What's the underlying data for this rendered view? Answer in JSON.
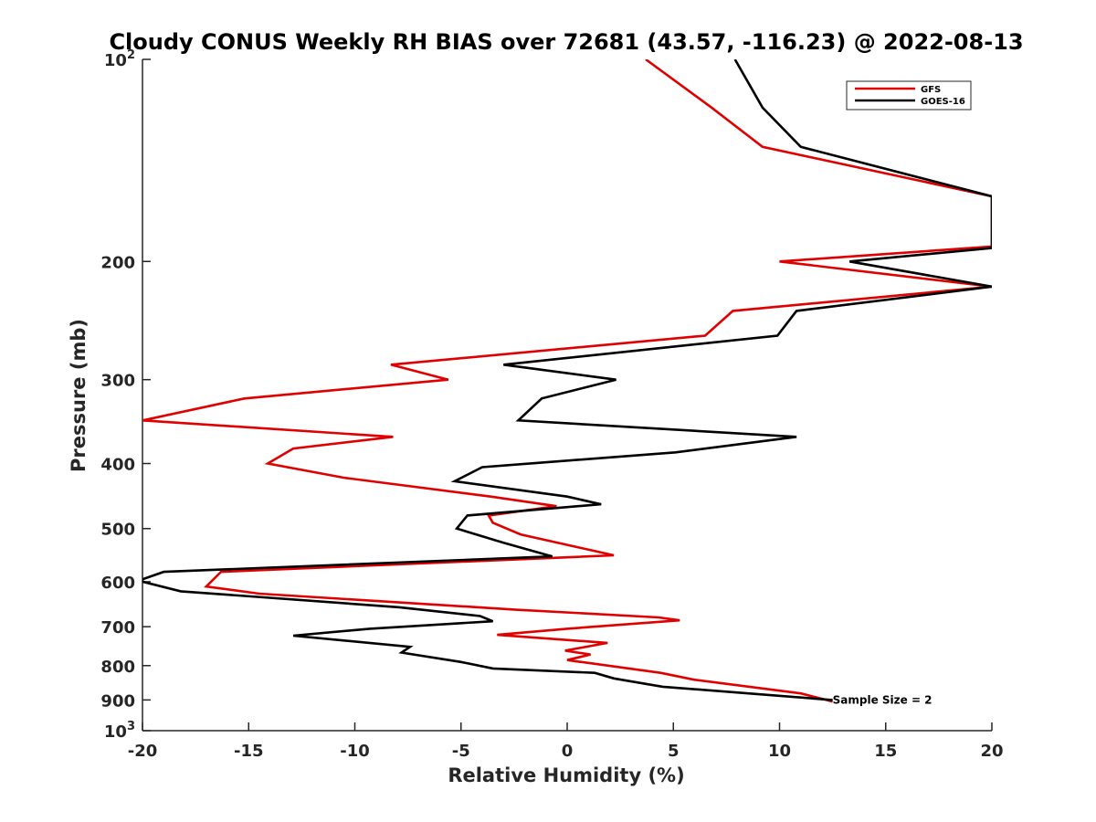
{
  "chart_data": {
    "type": "line",
    "title": "Cloudy CONUS Weekly RH BIAS over 72681 (43.57, -116.23) @ 2022-08-13",
    "xlabel": "Relative Humidity (%)",
    "ylabel": "Pressure (mb)",
    "xlim": [
      -20,
      20
    ],
    "ylim": [
      100,
      1000
    ],
    "y_scale": "log",
    "y_reversed": true,
    "grid": false,
    "legend_position": "top-right",
    "annotation": "Sample Size = 2",
    "x_ticks": [
      "-20",
      "-15",
      "-10",
      "-5",
      "0",
      "5",
      "10",
      "15",
      "20"
    ],
    "y_ticks": [
      {
        "value": 100,
        "base": "10",
        "exp": "2"
      },
      {
        "value": 200,
        "label": "200"
      },
      {
        "value": 300,
        "label": "300"
      },
      {
        "value": 400,
        "label": "400"
      },
      {
        "value": 500,
        "label": "500"
      },
      {
        "value": 600,
        "label": "600"
      },
      {
        "value": 700,
        "label": "700"
      },
      {
        "value": 800,
        "label": "800"
      },
      {
        "value": 900,
        "label": "900"
      },
      {
        "value": 1000,
        "base": "10",
        "exp": "3"
      }
    ],
    "series": [
      {
        "name": "GFS",
        "color": "#e00000",
        "points": [
          [
            3.7,
            100
          ],
          [
            6.8,
            118
          ],
          [
            9.2,
            135
          ],
          [
            20,
            160
          ],
          [
            20,
            190
          ],
          [
            10,
            200
          ],
          [
            20,
            218
          ],
          [
            7.8,
            237
          ],
          [
            6.5,
            258
          ],
          [
            -8.3,
            285
          ],
          [
            -5.6,
            300
          ],
          [
            -15.2,
            320
          ],
          [
            -20,
            345
          ],
          [
            -8.2,
            365
          ],
          [
            -12.9,
            380
          ],
          [
            -14.1,
            400
          ],
          [
            -10.5,
            420
          ],
          [
            -3.6,
            448
          ],
          [
            -0.5,
            463
          ],
          [
            -3.7,
            478
          ],
          [
            -3.5,
            490
          ],
          [
            -2.2,
            510
          ],
          [
            2.2,
            548
          ],
          [
            -16.3,
            580
          ],
          [
            -17,
            610
          ],
          [
            -14.5,
            625
          ],
          [
            -2.5,
            660
          ],
          [
            4.3,
            678
          ],
          [
            5.3,
            685
          ],
          [
            0,
            705
          ],
          [
            -3.3,
            720
          ],
          [
            1.9,
            740
          ],
          [
            -0.1,
            760
          ],
          [
            1.1,
            770
          ],
          [
            0,
            785
          ],
          [
            4.4,
            820
          ],
          [
            6,
            840
          ],
          [
            11,
            880
          ],
          [
            12.5,
            905
          ]
        ]
      },
      {
        "name": "GOES-16",
        "color": "#000000",
        "points": [
          [
            7.9,
            100
          ],
          [
            9.2,
            118
          ],
          [
            11,
            135
          ],
          [
            20,
            160
          ],
          [
            20,
            191
          ],
          [
            13.3,
            200
          ],
          [
            20,
            218
          ],
          [
            10.8,
            237
          ],
          [
            9.9,
            258
          ],
          [
            -3,
            285
          ],
          [
            2.3,
            300
          ],
          [
            -1.2,
            320
          ],
          [
            -2.3,
            345
          ],
          [
            10.8,
            365
          ],
          [
            5.1,
            385
          ],
          [
            -4,
            405
          ],
          [
            -5.3,
            425
          ],
          [
            0,
            448
          ],
          [
            1.6,
            460
          ],
          [
            -4.7,
            478
          ],
          [
            -5.2,
            500
          ],
          [
            -3,
            525
          ],
          [
            -0.7,
            550
          ],
          [
            -19,
            580
          ],
          [
            -20,
            595
          ],
          [
            -20,
            600
          ],
          [
            -18.2,
            620
          ],
          [
            -7.9,
            655
          ],
          [
            -4.1,
            675
          ],
          [
            -3.5,
            687
          ],
          [
            -9.3,
            705
          ],
          [
            -12.9,
            722
          ],
          [
            -7.4,
            750
          ],
          [
            -7.8,
            765
          ],
          [
            -5,
            790
          ],
          [
            -3.5,
            808
          ],
          [
            1.3,
            820
          ],
          [
            2.2,
            836
          ],
          [
            4.5,
            860
          ],
          [
            12.5,
            900
          ]
        ]
      }
    ]
  }
}
